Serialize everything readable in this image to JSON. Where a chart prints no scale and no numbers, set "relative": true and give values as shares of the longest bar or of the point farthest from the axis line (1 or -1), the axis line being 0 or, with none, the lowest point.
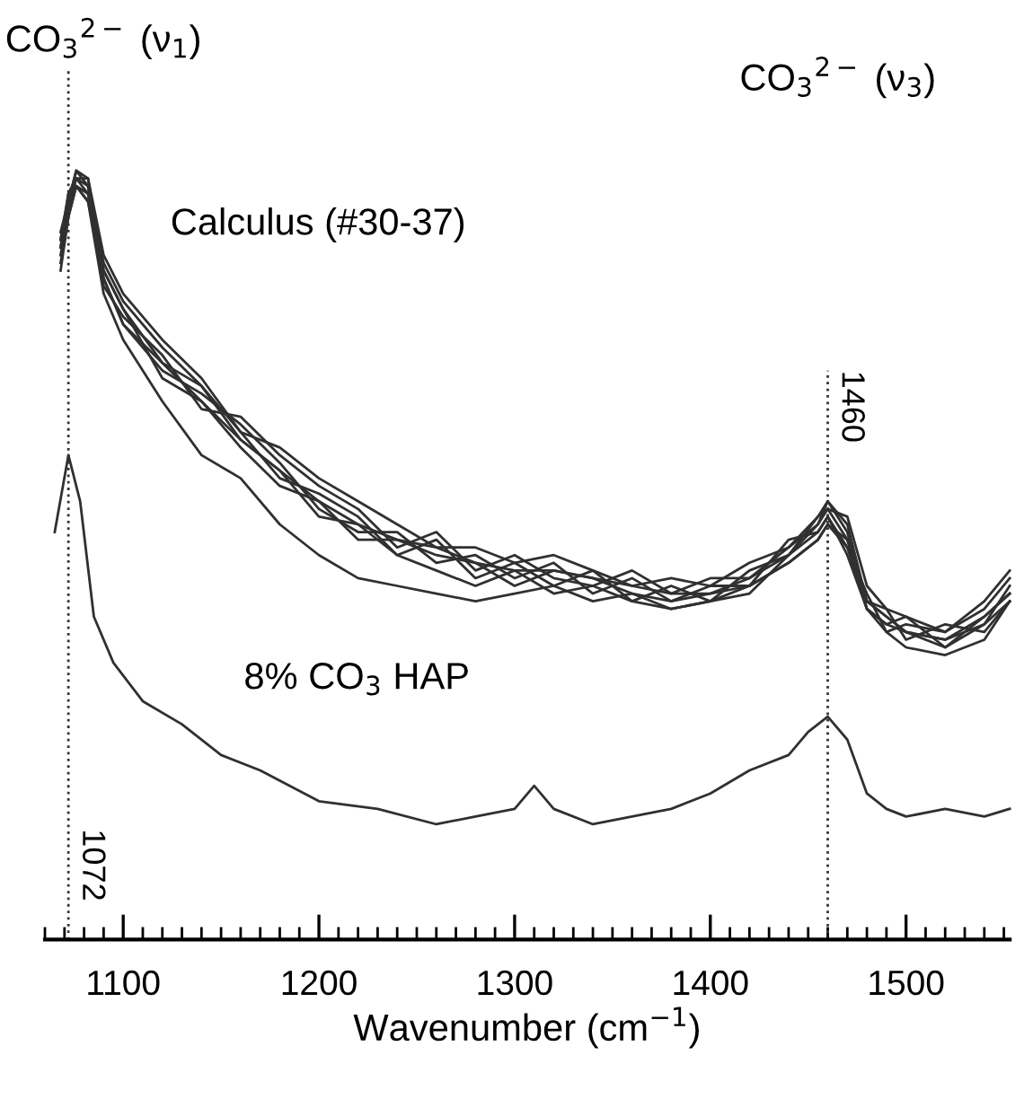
{
  "chart_data": {
    "type": "line",
    "relative": true,
    "xlabel": "Wavenumber (cm$^{−1}$)",
    "xlim": [
      1060,
      1553
    ],
    "xticks": [
      1100,
      1200,
      1300,
      1400,
      1500
    ],
    "grid": false,
    "marker": "none",
    "line_style": "solid",
    "ref_lines": [
      {
        "axis": "x",
        "value": 1072,
        "label": "1072",
        "color": "#333333",
        "line_style": "dotted"
      },
      {
        "axis": "x",
        "value": 1460,
        "label": "1460",
        "color": "#333333",
        "line_style": "dotted"
      }
    ],
    "annotations": [
      "CO$_{3}$$^{2−}$ (ν$_{1}$)",
      "CO$_{3}$$^{2−}$ (ν$_{3}$)",
      "Calculus (#30-37)",
      "8% CO$_{3}$ HAP"
    ],
    "x": [
      1068,
      1072,
      1076,
      1082,
      1090,
      1100,
      1120,
      1140,
      1160,
      1180,
      1200,
      1220,
      1240,
      1260,
      1280,
      1300,
      1320,
      1340,
      1360,
      1380,
      1400,
      1420,
      1440,
      1455,
      1460,
      1470,
      1480,
      1490,
      1500,
      1520,
      1540,
      1553
    ],
    "series": [
      {
        "color": "#303030",
        "values": [
          0.91,
          0.96,
          1.0,
          0.99,
          0.87,
          0.82,
          0.75,
          0.7,
          0.65,
          0.61,
          0.57,
          0.54,
          0.52,
          0.51,
          0.49,
          0.48,
          0.48,
          0.47,
          0.46,
          0.45,
          0.45,
          0.47,
          0.51,
          0.54,
          0.56,
          0.52,
          0.44,
          0.42,
          0.4,
          0.39,
          0.42,
          0.45
        ]
      },
      {
        "color": "#303030",
        "values": [
          0.9,
          0.97,
          0.99,
          0.98,
          0.88,
          0.83,
          0.77,
          0.72,
          0.66,
          0.6,
          0.58,
          0.55,
          0.5,
          0.52,
          0.47,
          0.49,
          0.46,
          0.48,
          0.44,
          0.46,
          0.44,
          0.48,
          0.5,
          0.55,
          0.57,
          0.53,
          0.43,
          0.41,
          0.42,
          0.38,
          0.41,
          0.46
        ]
      },
      {
        "color": "#303030",
        "values": [
          0.89,
          0.95,
          0.99,
          0.97,
          0.86,
          0.8,
          0.74,
          0.71,
          0.67,
          0.62,
          0.56,
          0.53,
          0.53,
          0.49,
          0.5,
          0.47,
          0.49,
          0.45,
          0.47,
          0.44,
          0.46,
          0.46,
          0.52,
          0.53,
          0.55,
          0.51,
          0.45,
          0.4,
          0.41,
          0.4,
          0.43,
          0.47
        ]
      },
      {
        "color": "#303030",
        "values": [
          0.92,
          0.96,
          1.0,
          0.98,
          0.85,
          0.81,
          0.76,
          0.69,
          0.68,
          0.63,
          0.59,
          0.56,
          0.51,
          0.53,
          0.48,
          0.5,
          0.47,
          0.46,
          0.48,
          0.45,
          0.47,
          0.47,
          0.5,
          0.54,
          0.57,
          0.54,
          0.44,
          0.43,
          0.39,
          0.41,
          0.4,
          0.44
        ]
      },
      {
        "color": "#303030",
        "values": [
          0.88,
          0.94,
          0.98,
          0.96,
          0.87,
          0.82,
          0.73,
          0.7,
          0.64,
          0.59,
          0.57,
          0.52,
          0.52,
          0.5,
          0.49,
          0.46,
          0.48,
          0.47,
          0.45,
          0.44,
          0.45,
          0.46,
          0.49,
          0.52,
          0.54,
          0.52,
          0.44,
          0.42,
          0.4,
          0.38,
          0.42,
          0.45
        ]
      },
      {
        "color": "#303030",
        "values": [
          0.91,
          0.97,
          0.99,
          0.99,
          0.89,
          0.84,
          0.78,
          0.73,
          0.66,
          0.64,
          0.6,
          0.57,
          0.54,
          0.51,
          0.51,
          0.49,
          0.5,
          0.48,
          0.46,
          0.47,
          0.46,
          0.49,
          0.51,
          0.55,
          0.56,
          0.55,
          0.46,
          0.43,
          0.42,
          0.4,
          0.44,
          0.48
        ]
      },
      {
        "color": "#303030",
        "values": [
          0.9,
          0.95,
          0.98,
          0.97,
          0.86,
          0.8,
          0.75,
          0.72,
          0.65,
          0.61,
          0.55,
          0.54,
          0.5,
          0.48,
          0.46,
          0.48,
          0.45,
          0.46,
          0.44,
          0.43,
          0.44,
          0.45,
          0.5,
          0.53,
          0.55,
          0.5,
          0.43,
          0.4,
          0.38,
          0.37,
          0.39,
          0.44
        ]
      },
      {
        "color": "#303030",
        "values": [
          0.87,
          0.94,
          0.98,
          0.96,
          0.84,
          0.78,
          0.7,
          0.63,
          0.6,
          0.54,
          0.5,
          0.47,
          0.46,
          0.45,
          0.44,
          0.45,
          0.46,
          0.44,
          0.45,
          0.43,
          0.44,
          0.46,
          0.49,
          0.52,
          0.54,
          0.51,
          0.43,
          0.41,
          0.4,
          0.39,
          0.41,
          0.44
        ]
      },
      {
        "color": "#303030",
        "x": [
          1065,
          1072,
          1078,
          1085,
          1095,
          1110,
          1130,
          1150,
          1170,
          1200,
          1230,
          1260,
          1280,
          1300,
          1310,
          1320,
          1340,
          1360,
          1380,
          1400,
          1420,
          1440,
          1450,
          1460,
          1470,
          1480,
          1490,
          1500,
          1520,
          1540,
          1553
        ],
        "values": [
          0.53,
          0.63,
          0.57,
          0.42,
          0.36,
          0.31,
          0.28,
          0.24,
          0.22,
          0.18,
          0.17,
          0.15,
          0.16,
          0.17,
          0.2,
          0.17,
          0.15,
          0.16,
          0.17,
          0.19,
          0.22,
          0.24,
          0.27,
          0.29,
          0.26,
          0.19,
          0.17,
          0.16,
          0.17,
          0.16,
          0.17
        ]
      }
    ]
  }
}
